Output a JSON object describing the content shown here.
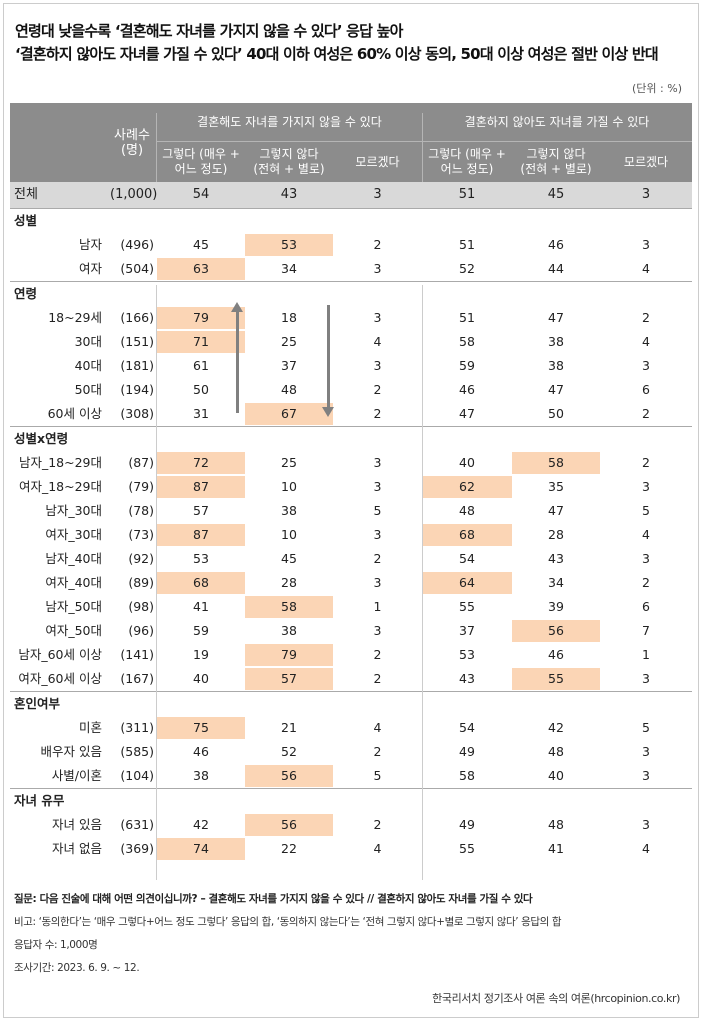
{
  "title": {
    "line1": "연령대 낮을수록 ‘결혼해도 자녀를 가지지 않을 수 있다’ 응답 높아",
    "line2": "‘결혼하지 않아도 자녀를 가질 수 있다’ 40대 이하 여성은 60% 이상 동의, 50대 이상 여성은 절반 이상 반대"
  },
  "unit": "(단위 : %)",
  "header": {
    "count": "사례수\n(명)",
    "group1": "결혼해도 자녀를 가지지 않을 수 있다",
    "group2": "결혼하지 않아도 자녀를 가질 수 있다",
    "sub": [
      "그렇다 (매우 +\n어느 정도)",
      "그렇지 않다\n(전혀 + 별로)",
      "모르겠다",
      "그렇다 (매우 +\n어느 정도)",
      "그렇지 않다\n(전혀 + 별로)",
      "모르겠다"
    ]
  },
  "total": {
    "label": "전체",
    "count": "(1,000)",
    "values": [
      "54",
      "43",
      "3",
      "51",
      "45",
      "3"
    ]
  },
  "highlight_color": "#fbd5b5",
  "sections": [
    {
      "title": "성별",
      "rows": [
        {
          "label": "남자",
          "count": "(496)",
          "values": [
            "45",
            "53",
            "2",
            "51",
            "46",
            "3"
          ],
          "highlight": [
            1
          ]
        },
        {
          "label": "여자",
          "count": "(504)",
          "values": [
            "63",
            "34",
            "3",
            "52",
            "44",
            "4"
          ],
          "highlight": [
            0
          ]
        }
      ]
    },
    {
      "title": "연령",
      "rows": [
        {
          "label": "18~29세",
          "count": "(166)",
          "values": [
            "79",
            "18",
            "3",
            "51",
            "47",
            "2"
          ],
          "highlight": [
            0
          ]
        },
        {
          "label": "30대",
          "count": "(151)",
          "values": [
            "71",
            "25",
            "4",
            "58",
            "38",
            "4"
          ],
          "highlight": [
            0
          ]
        },
        {
          "label": "40대",
          "count": "(181)",
          "values": [
            "61",
            "37",
            "3",
            "59",
            "38",
            "3"
          ],
          "highlight": []
        },
        {
          "label": "50대",
          "count": "(194)",
          "values": [
            "50",
            "48",
            "2",
            "46",
            "47",
            "6"
          ],
          "highlight": []
        },
        {
          "label": "60세 이상",
          "count": "(308)",
          "values": [
            "31",
            "67",
            "2",
            "47",
            "50",
            "2"
          ],
          "highlight": [
            1
          ]
        }
      ]
    },
    {
      "title": "성별x연령",
      "rows": [
        {
          "label": "남자_18~29대",
          "count": "(87)",
          "values": [
            "72",
            "25",
            "3",
            "40",
            "58",
            "2"
          ],
          "highlight": [
            0,
            4
          ]
        },
        {
          "label": "여자_18~29대",
          "count": "(79)",
          "values": [
            "87",
            "10",
            "3",
            "62",
            "35",
            "3"
          ],
          "highlight": [
            0,
            3
          ]
        },
        {
          "label": "남자_30대",
          "count": "(78)",
          "values": [
            "57",
            "38",
            "5",
            "48",
            "47",
            "5"
          ],
          "highlight": []
        },
        {
          "label": "여자_30대",
          "count": "(73)",
          "values": [
            "87",
            "10",
            "3",
            "68",
            "28",
            "4"
          ],
          "highlight": [
            0,
            3
          ]
        },
        {
          "label": "남자_40대",
          "count": "(92)",
          "values": [
            "53",
            "45",
            "2",
            "54",
            "43",
            "3"
          ],
          "highlight": []
        },
        {
          "label": "여자_40대",
          "count": "(89)",
          "values": [
            "68",
            "28",
            "3",
            "64",
            "34",
            "2"
          ],
          "highlight": [
            0,
            3
          ]
        },
        {
          "label": "남자_50대",
          "count": "(98)",
          "values": [
            "41",
            "58",
            "1",
            "55",
            "39",
            "6"
          ],
          "highlight": [
            1
          ]
        },
        {
          "label": "여자_50대",
          "count": "(96)",
          "values": [
            "59",
            "38",
            "3",
            "37",
            "56",
            "7"
          ],
          "highlight": [
            4
          ]
        },
        {
          "label": "남자_60세 이상",
          "count": "(141)",
          "values": [
            "19",
            "79",
            "2",
            "53",
            "46",
            "1"
          ],
          "highlight": [
            1
          ]
        },
        {
          "label": "여자_60세 이상",
          "count": "(167)",
          "values": [
            "40",
            "57",
            "2",
            "43",
            "55",
            "3"
          ],
          "highlight": [
            1,
            4
          ]
        }
      ]
    },
    {
      "title": "혼인여부",
      "rows": [
        {
          "label": "미혼",
          "count": "(311)",
          "values": [
            "75",
            "21",
            "4",
            "54",
            "42",
            "5"
          ],
          "highlight": [
            0
          ]
        },
        {
          "label": "배우자 있음",
          "count": "(585)",
          "values": [
            "46",
            "52",
            "2",
            "49",
            "48",
            "3"
          ],
          "highlight": []
        },
        {
          "label": "사별/이혼",
          "count": "(104)",
          "values": [
            "38",
            "56",
            "5",
            "58",
            "40",
            "3"
          ],
          "highlight": [
            1
          ]
        }
      ]
    },
    {
      "title": "자녀 유무",
      "rows": [
        {
          "label": "자녀 있음",
          "count": "(631)",
          "values": [
            "42",
            "56",
            "2",
            "49",
            "48",
            "3"
          ],
          "highlight": [
            1
          ]
        },
        {
          "label": "자녀 없음",
          "count": "(369)",
          "values": [
            "74",
            "22",
            "4",
            "55",
            "41",
            "4"
          ],
          "highlight": [
            0
          ]
        }
      ]
    }
  ],
  "notes": {
    "question": "질문: 다음 진술에 대해 어떤 의견이십니까? – 결혼해도 자녀를 가지지 않을 수 있다 // 결혼하지 않아도 자녀를 가질 수 있다",
    "remark": "비고: ‘동의한다’는 ‘매우 그렇다+어느 정도 그렇다’ 응답의 합, ‘동의하지 않는다’는 ‘전혀 그렇지 않다+별로 그렇지 않다’ 응답의 합",
    "respondents": "응답자 수: 1,000명",
    "period": "조사기간: 2023. 6. 9. ~ 12."
  },
  "source": "한국리서치 정기조사 여론 속의 여론(hrcopinion.co.kr)"
}
